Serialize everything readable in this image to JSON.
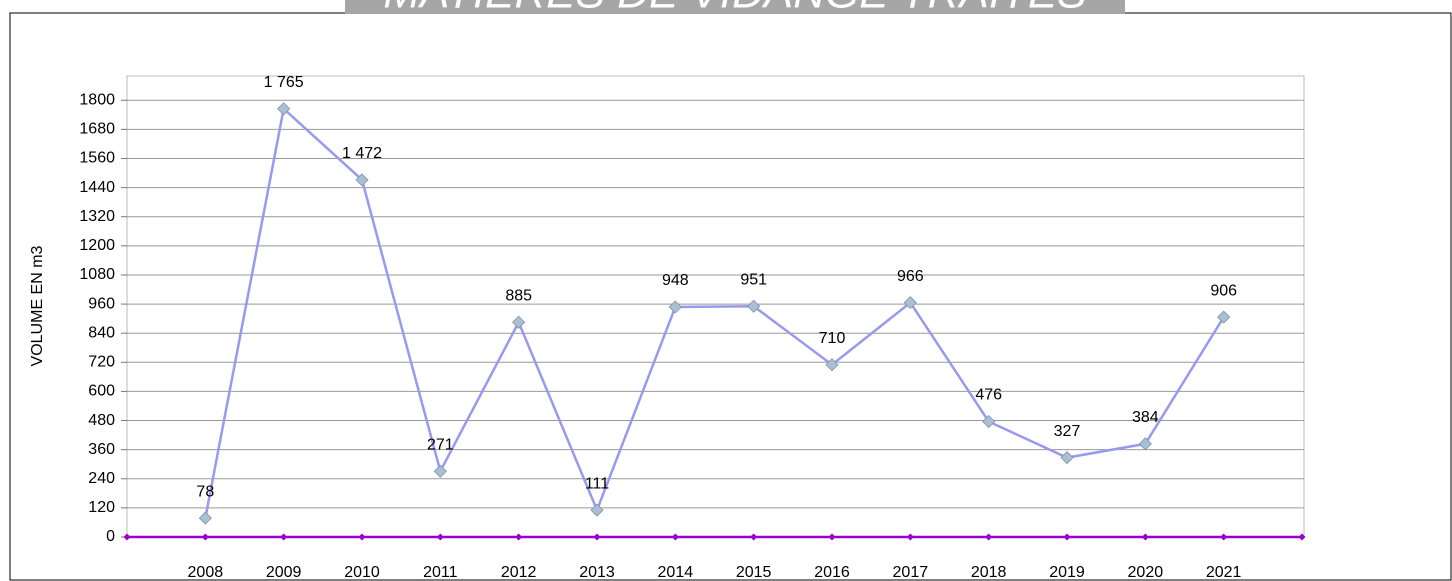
{
  "chart_data": {
    "type": "line",
    "title": "MATIERES DE VIDANGE TRAITES",
    "y_label": "VOLUME EN m3",
    "categories": [
      null,
      "2008",
      "2009",
      "2010",
      "2011",
      "2012",
      "2013",
      "2014",
      "2015",
      "2016",
      "2017",
      "2018",
      "2019",
      "2020",
      "2021",
      null
    ],
    "series": [
      {
        "color": "#9999ee",
        "marker_color": "#a9bfd4",
        "values": [
          null,
          78,
          1765,
          1472,
          271,
          885,
          111,
          948,
          951,
          710,
          966,
          476,
          327,
          384,
          906,
          null
        ],
        "value_labels": [
          null,
          "78",
          "1 765",
          "1 472",
          "271",
          "885",
          "111",
          "948",
          "951",
          "710",
          "966",
          "476",
          "327",
          "384",
          "906",
          null
        ]
      },
      {
        "color": "#9900cc",
        "marker_color": "#9900cc",
        "values": [
          0,
          0,
          0,
          0,
          0,
          0,
          0,
          0,
          0,
          0,
          0,
          0,
          0,
          0,
          0,
          0
        ]
      }
    ],
    "ylim": [
      0,
      1900
    ],
    "yticks": [
      0,
      120,
      240,
      360,
      480,
      600,
      720,
      840,
      960,
      1080,
      1200,
      1320,
      1440,
      1560,
      1680,
      1800
    ],
    "grid": true
  }
}
